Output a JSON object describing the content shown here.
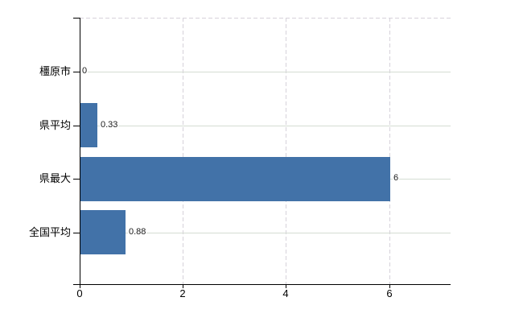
{
  "chart_data": {
    "type": "bar",
    "orientation": "horizontal",
    "categories": [
      "橿原市",
      "県平均",
      "県最大",
      "全国平均"
    ],
    "values": [
      0,
      0.33,
      6,
      0.88
    ],
    "data_labels": [
      "0",
      "0.33",
      "6",
      "0.88"
    ],
    "x_ticks": [
      "0",
      "2",
      "4",
      "6"
    ],
    "x_tick_values": [
      0,
      2,
      4,
      6
    ],
    "xlim": [
      0,
      7.2
    ],
    "grid": true,
    "legend": false,
    "title": "",
    "xlabel": "",
    "ylabel": "",
    "bar_color": "#4272a8",
    "h_gridline_color": "#d5ddd3",
    "v_gridline_color": "#d6d2da",
    "axis_color": "#000000",
    "text_color": "#000000",
    "background_color": "#ffffff"
  }
}
